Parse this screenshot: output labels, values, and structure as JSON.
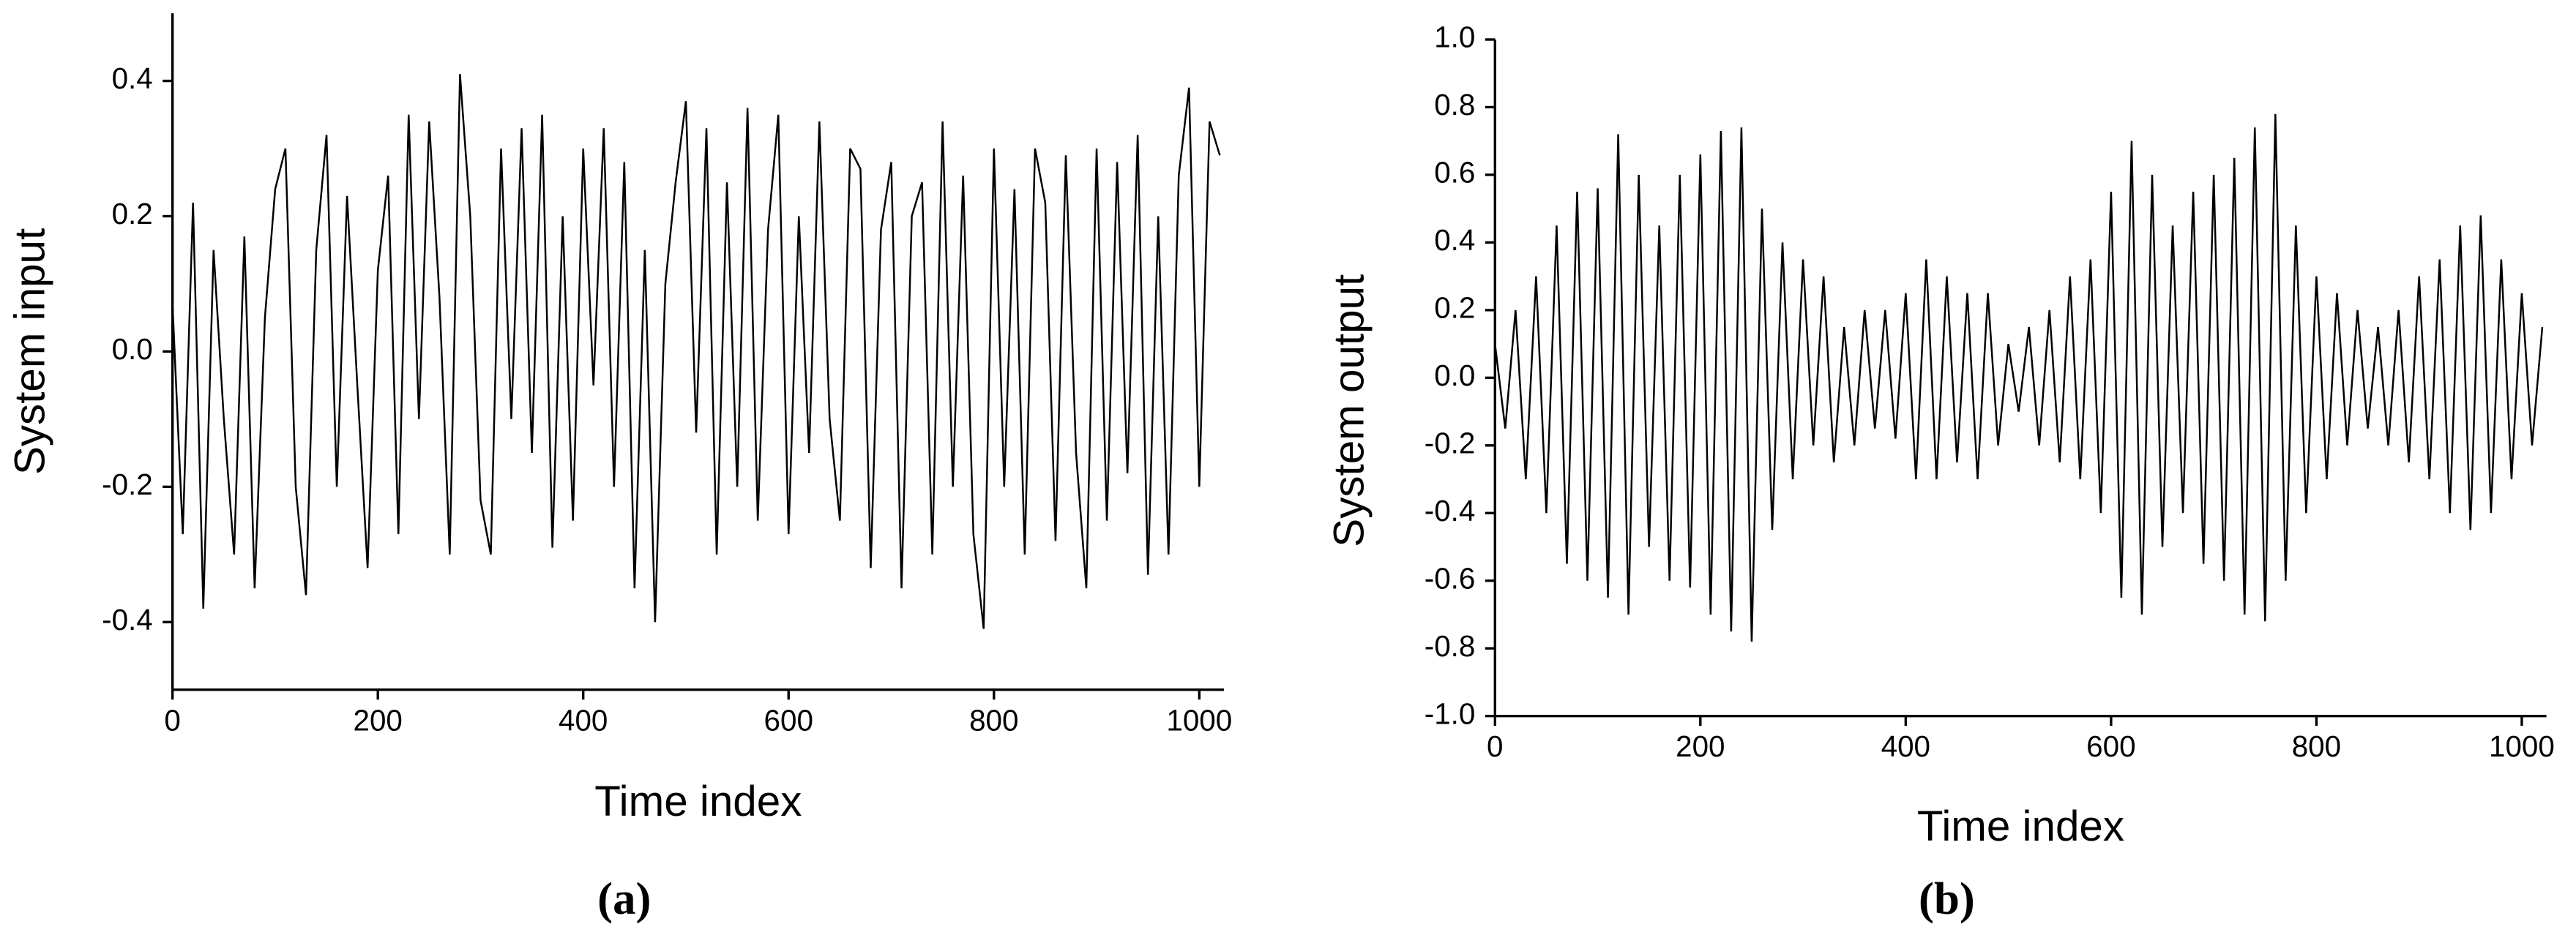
{
  "chart_data": [
    {
      "type": "line",
      "caption": "(a)",
      "xlabel": "Time index",
      "ylabel": "System input",
      "x": [
        0,
        10,
        20,
        30,
        40,
        50,
        60,
        70,
        80,
        90,
        100,
        110,
        120,
        130,
        140,
        150,
        160,
        170,
        180,
        190,
        200,
        210,
        220,
        230,
        240,
        250,
        260,
        270,
        280,
        290,
        300,
        310,
        320,
        330,
        340,
        350,
        360,
        370,
        380,
        390,
        400,
        410,
        420,
        430,
        440,
        450,
        460,
        470,
        480,
        490,
        500,
        510,
        520,
        530,
        540,
        550,
        560,
        570,
        580,
        590,
        600,
        610,
        620,
        630,
        640,
        650,
        660,
        670,
        680,
        690,
        700,
        710,
        720,
        730,
        740,
        750,
        760,
        770,
        780,
        790,
        800,
        810,
        820,
        830,
        840,
        850,
        860,
        870,
        880,
        890,
        900,
        910,
        920,
        930,
        940,
        950,
        960,
        970,
        980,
        990,
        1000,
        1010,
        1020
      ],
      "series": [
        {
          "color": "#000000",
          "values": [
            0.07,
            -0.27,
            0.22,
            -0.38,
            0.15,
            -0.1,
            -0.3,
            0.17,
            -0.35,
            0.05,
            0.24,
            0.3,
            -0.2,
            -0.36,
            0.15,
            0.32,
            -0.2,
            0.23,
            -0.05,
            -0.32,
            0.12,
            0.26,
            -0.27,
            0.35,
            -0.1,
            0.34,
            0.08,
            -0.3,
            0.41,
            0.2,
            -0.22,
            -0.3,
            0.3,
            -0.1,
            0.33,
            -0.15,
            0.35,
            -0.29,
            0.2,
            -0.25,
            0.3,
            -0.05,
            0.33,
            -0.2,
            0.28,
            -0.35,
            0.15,
            -0.4,
            0.1,
            0.25,
            0.37,
            -0.12,
            0.33,
            -0.3,
            0.25,
            -0.2,
            0.36,
            -0.25,
            0.18,
            0.35,
            -0.27,
            0.2,
            -0.15,
            0.34,
            -0.1,
            -0.25,
            0.3,
            0.27,
            -0.32,
            0.18,
            0.28,
            -0.35,
            0.2,
            0.25,
            -0.3,
            0.34,
            -0.2,
            0.26,
            -0.27,
            -0.41,
            0.3,
            -0.2,
            0.24,
            -0.3,
            0.3,
            0.22,
            -0.28,
            0.29,
            -0.15,
            -0.35,
            0.3,
            -0.25,
            0.28,
            -0.18,
            0.32,
            -0.33,
            0.2,
            -0.3,
            0.26,
            0.39,
            -0.2,
            0.34,
            0.29
          ]
        }
      ],
      "xlim": [
        0,
        1024
      ],
      "xticks": [
        0,
        200,
        400,
        600,
        800,
        1000
      ],
      "ylim": [
        -0.5,
        0.5
      ],
      "yticks": [
        -0.4,
        -0.2,
        {
          "value": 0,
          "label": "0.0"
        },
        0.2,
        0.4
      ]
    },
    {
      "type": "line",
      "caption": "(b)",
      "xlabel": "Time index",
      "ylabel": "System output",
      "x": [
        0,
        10,
        20,
        30,
        40,
        50,
        60,
        70,
        80,
        90,
        100,
        110,
        120,
        130,
        140,
        150,
        160,
        170,
        180,
        190,
        200,
        210,
        220,
        230,
        240,
        250,
        260,
        270,
        280,
        290,
        300,
        310,
        320,
        330,
        340,
        350,
        360,
        370,
        380,
        390,
        400,
        410,
        420,
        430,
        440,
        450,
        460,
        470,
        480,
        490,
        500,
        510,
        520,
        530,
        540,
        550,
        560,
        570,
        580,
        590,
        600,
        610,
        620,
        630,
        640,
        650,
        660,
        670,
        680,
        690,
        700,
        710,
        720,
        730,
        740,
        750,
        760,
        770,
        780,
        790,
        800,
        810,
        820,
        830,
        840,
        850,
        860,
        870,
        880,
        890,
        900,
        910,
        920,
        930,
        940,
        950,
        960,
        970,
        980,
        990,
        1000,
        1010,
        1020
      ],
      "series": [
        {
          "color": "#000000",
          "values": [
            0.1,
            -0.15,
            0.2,
            -0.3,
            0.3,
            -0.4,
            0.45,
            -0.55,
            0.55,
            -0.6,
            0.56,
            -0.65,
            0.72,
            -0.7,
            0.6,
            -0.5,
            0.45,
            -0.6,
            0.6,
            -0.62,
            0.66,
            -0.7,
            0.73,
            -0.75,
            0.74,
            -0.78,
            0.5,
            -0.45,
            0.4,
            -0.3,
            0.35,
            -0.2,
            0.3,
            -0.25,
            0.15,
            -0.2,
            0.2,
            -0.15,
            0.2,
            -0.18,
            0.25,
            -0.3,
            0.35,
            -0.3,
            0.3,
            -0.25,
            0.25,
            -0.3,
            0.25,
            -0.2,
            0.1,
            -0.1,
            0.15,
            -0.2,
            0.2,
            -0.25,
            0.3,
            -0.3,
            0.35,
            -0.4,
            0.55,
            -0.65,
            0.7,
            -0.7,
            0.6,
            -0.5,
            0.45,
            -0.4,
            0.55,
            -0.55,
            0.6,
            -0.6,
            0.65,
            -0.7,
            0.74,
            -0.72,
            0.78,
            -0.6,
            0.45,
            -0.4,
            0.3,
            -0.3,
            0.25,
            -0.2,
            0.2,
            -0.15,
            0.15,
            -0.2,
            0.2,
            -0.25,
            0.3,
            -0.3,
            0.35,
            -0.4,
            0.45,
            -0.45,
            0.48,
            -0.4,
            0.35,
            -0.3,
            0.25,
            -0.2,
            0.15
          ]
        }
      ],
      "xlim": [
        0,
        1024
      ],
      "xticks": [
        0,
        200,
        400,
        600,
        800,
        1000
      ],
      "ylim": [
        -1,
        1
      ],
      "yticks": [
        {
          "value": -1,
          "label": "-1.0"
        },
        -0.8,
        -0.6,
        -0.4,
        -0.2,
        {
          "value": 0,
          "label": "0.0"
        },
        0.2,
        0.4,
        0.6,
        0.8,
        {
          "value": 1,
          "label": "1.0"
        }
      ]
    }
  ]
}
